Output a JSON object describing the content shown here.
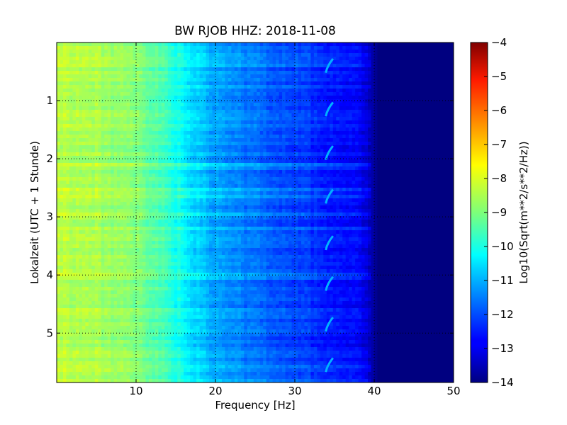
{
  "chart_data": {
    "type": "heatmap",
    "title": "BW RJOB HHZ: 2018-11-08",
    "xlabel": "Frequency [Hz]",
    "ylabel": "Lokalzeit (UTC + 1 Stunde)",
    "xlim": [
      0,
      50
    ],
    "ylim": [
      5.85,
      0
    ],
    "x_ticks": [
      10,
      20,
      30,
      40,
      50
    ],
    "x_tick_labels": [
      "10",
      "20",
      "30",
      "40",
      "50"
    ],
    "y_ticks": [
      1,
      2,
      3,
      4,
      5
    ],
    "y_tick_labels": [
      "1",
      "2",
      "3",
      "4",
      "5"
    ],
    "grid": true,
    "colormap": "jet",
    "colorbar": {
      "label": "Log10(Sqrt(m**2/s**2/Hz))",
      "range": [
        -14,
        -4
      ],
      "ticks": [
        -4,
        -5,
        -6,
        -7,
        -8,
        -9,
        -10,
        -11,
        -12,
        -13,
        -14
      ],
      "tick_labels": [
        "−4",
        "−5",
        "−6",
        "−7",
        "−8",
        "−9",
        "−10",
        "−11",
        "−12",
        "−13",
        "−14"
      ]
    },
    "frequency_nodes_hz": [
      0,
      5,
      10,
      14,
      17,
      20,
      25,
      30,
      34,
      38,
      39.5,
      40.5,
      50
    ],
    "level_profile": [
      -8.4,
      -8.6,
      -9.0,
      -9.7,
      -10.6,
      -11.2,
      -11.7,
      -12.1,
      -12.5,
      -12.8,
      -13.4,
      -14.0,
      -14.0
    ],
    "repeating_feature": {
      "frequency_hz": 34.3,
      "times_h": [
        0.4,
        1.15,
        1.9,
        2.65,
        3.45,
        4.15,
        4.85,
        5.55
      ]
    }
  }
}
